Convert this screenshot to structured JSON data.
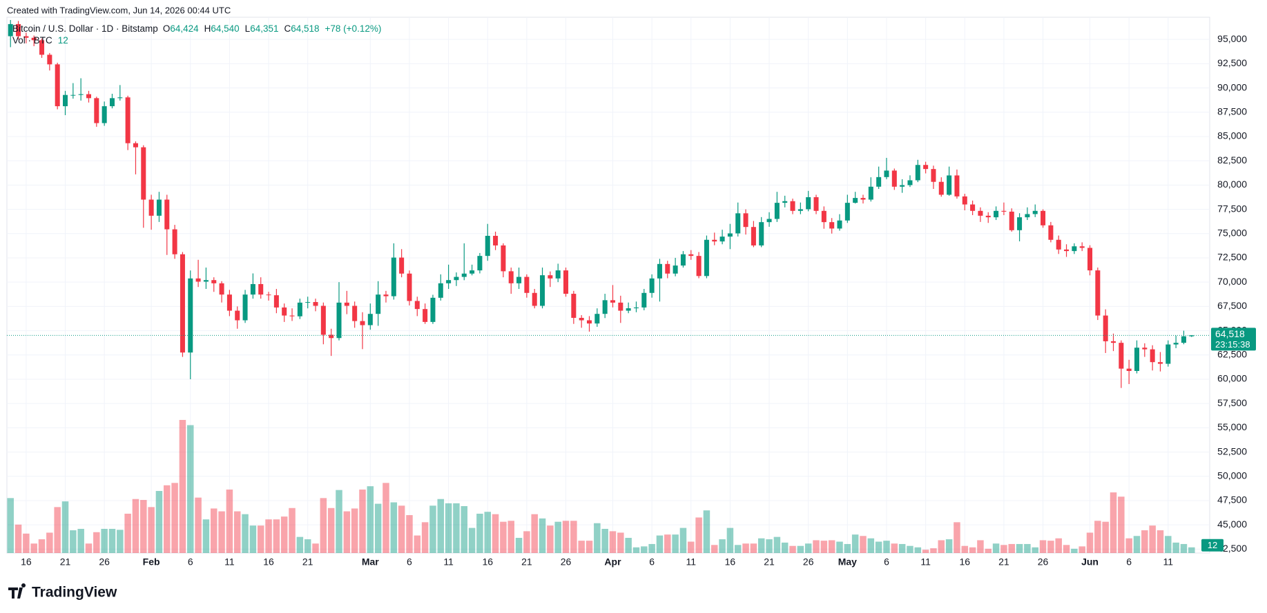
{
  "caption": "Created with TradingView.com, Jun 14, 2026 00:44 UTC",
  "logo": "TradingView",
  "chart_data": {
    "type": "candlestick",
    "legend": {
      "symbol": "Bitcoin / U.S. Dollar · 1D · Bitstamp",
      "fields": [
        [
          "O",
          "64,424"
        ],
        [
          "H",
          "64,540"
        ],
        [
          "L",
          "64,351"
        ],
        [
          "C",
          "64,518"
        ]
      ],
      "change": "+78 (+0.12%)",
      "volume_name": "Vol · BTC"
    },
    "up_color": "#089981",
    "down_color": "#f23645",
    "ylim": [
      42100,
      97000
    ],
    "yticks": [
      {
        "value": 95000,
        "label": "95,000"
      },
      {
        "value": 92500,
        "label": "92,500"
      },
      {
        "value": 90000,
        "label": "90,000"
      },
      {
        "value": 87500,
        "label": "87,500"
      },
      {
        "value": 85000,
        "label": "85,000"
      },
      {
        "value": 82500,
        "label": "82,500"
      },
      {
        "value": 80000,
        "label": "80,000"
      },
      {
        "value": 77500,
        "label": "77,500"
      },
      {
        "value": 75000,
        "label": "75,000"
      },
      {
        "value": 72500,
        "label": "72,500"
      },
      {
        "value": 70000,
        "label": "70,000"
      },
      {
        "value": 67500,
        "label": "67,500"
      },
      {
        "value": 65000,
        "label": "65,000"
      },
      {
        "value": 62500,
        "label": "62,500"
      },
      {
        "value": 60000,
        "label": "60,000"
      },
      {
        "value": 57500,
        "label": "57,500"
      },
      {
        "value": 55000,
        "label": "55,000"
      },
      {
        "value": 52500,
        "label": "52,500"
      },
      {
        "value": 50000,
        "label": "50,000"
      },
      {
        "value": 47500,
        "label": "47,500"
      },
      {
        "value": 45000,
        "label": "45,000"
      },
      {
        "value": 42500,
        "label": "42,500"
      }
    ],
    "xticks": [
      {
        "value": 2,
        "label": "16"
      },
      {
        "value": 7,
        "label": "21"
      },
      {
        "value": 12,
        "label": "26"
      },
      {
        "value": 18,
        "label": "Feb"
      },
      {
        "value": 23,
        "label": "6"
      },
      {
        "value": 28,
        "label": "11"
      },
      {
        "value": 33,
        "label": "16"
      },
      {
        "value": 38,
        "label": "21"
      },
      {
        "value": 46,
        "label": "Mar"
      },
      {
        "value": 51,
        "label": "6"
      },
      {
        "value": 56,
        "label": "11"
      },
      {
        "value": 61,
        "label": "16"
      },
      {
        "value": 66,
        "label": "21"
      },
      {
        "value": 71,
        "label": "26"
      },
      {
        "value": 77,
        "label": "Apr"
      },
      {
        "value": 82,
        "label": "6"
      },
      {
        "value": 87,
        "label": "11"
      },
      {
        "value": 92,
        "label": "16"
      },
      {
        "value": 97,
        "label": "21"
      },
      {
        "value": 102,
        "label": "26"
      },
      {
        "value": 107,
        "label": "May"
      },
      {
        "value": 112,
        "label": "6"
      },
      {
        "value": 117,
        "label": "11"
      },
      {
        "value": 122,
        "label": "16"
      },
      {
        "value": 127,
        "label": "21"
      },
      {
        "value": 132,
        "label": "26"
      },
      {
        "value": 138,
        "label": "Jun"
      },
      {
        "value": 143,
        "label": "6"
      },
      {
        "value": 148,
        "label": "11"
      }
    ],
    "grid": true,
    "price_tag": {
      "value": 64518,
      "label": "64,518"
    },
    "countdown": "23:15:38",
    "open": [
      95330,
      96580,
      95330,
      95170,
      94920,
      93420,
      92430,
      88120,
      89280,
      89280,
      89360,
      88950,
      86380,
      88120,
      88950,
      89030,
      84310,
      83890,
      78500,
      76840,
      78500,
      75440,
      72870,
      62750,
      70380,
      70050,
      70210,
      69880,
      68720,
      67060,
      66070,
      68720,
      69800,
      68720,
      68650,
      67390,
      66560,
      66480,
      67890,
      67950,
      67560,
      64580,
      64240,
      67890,
      67560,
      65990,
      65570,
      66730,
      68720,
      68550,
      72530,
      70880,
      68060,
      67230,
      65900,
      68390,
      69880,
      70210,
      70540,
      70880,
      71210,
      72700,
      74770,
      73780,
      71120,
      69880,
      70540,
      68890,
      67560,
      70710,
      70380,
      71210,
      68800,
      66320,
      66070,
      65740,
      66730,
      68140,
      67890,
      67060,
      67310,
      67390,
      68890,
      70380,
      71870,
      70880,
      71710,
      72870,
      72700,
      70630,
      74360,
      74190,
      74690,
      75020,
      77090,
      75680,
      73780,
      76180,
      76510,
      78170,
      78340,
      77340,
      77510,
      78750,
      77340,
      76180,
      75520,
      76350,
      78170,
      78670,
      78500,
      79830,
      80820,
      81490,
      79830,
      79990,
      80490,
      82070,
      81650,
      80330,
      79000,
      80990,
      78830,
      78000,
      77340,
      76840,
      76680,
      77340,
      77260,
      75350,
      76680,
      77010,
      77340,
      75850,
      74360,
      73360,
      73200,
      73690,
      73530,
      71210,
      66560,
      63910,
      63750,
      61090,
      60850,
      63250,
      63080,
      61760,
      61590,
      63580,
      63750,
      64424
    ],
    "high": [
      97000,
      96900,
      95700,
      95400,
      95100,
      93600,
      92600,
      89700,
      90500,
      91000,
      89700,
      89100,
      88600,
      89400,
      90300,
      89200,
      84500,
      84100,
      79000,
      79300,
      79000,
      75900,
      73100,
      71200,
      72300,
      71500,
      70500,
      70100,
      69200,
      67500,
      69200,
      70900,
      70500,
      69000,
      69300,
      67800,
      67300,
      68300,
      68500,
      68300,
      67900,
      65200,
      70000,
      69100,
      68000,
      66900,
      67800,
      70100,
      69100,
      74000,
      73400,
      71200,
      68500,
      67800,
      68700,
      70800,
      71800,
      71000,
      74000,
      71800,
      73000,
      76000,
      75200,
      74000,
      71500,
      71500,
      70800,
      69300,
      71500,
      71100,
      71900,
      71500,
      69100,
      66600,
      66500,
      67300,
      68800,
      69700,
      68600,
      67900,
      68000,
      69300,
      70800,
      72400,
      72200,
      72500,
      73200,
      73300,
      73100,
      74800,
      75100,
      75400,
      76000,
      78200,
      77500,
      76300,
      76700,
      77200,
      79300,
      78900,
      78600,
      78200,
      79400,
      79000,
      77800,
      76600,
      77000,
      79000,
      79300,
      79000,
      80800,
      81900,
      82800,
      81700,
      80600,
      81000,
      82600,
      82400,
      82000,
      80800,
      81900,
      81600,
      79100,
      78400,
      77700,
      77200,
      77800,
      78200,
      77600,
      77100,
      77700,
      78000,
      77500,
      76200,
      74800,
      73900,
      74000,
      74100,
      73800,
      71500,
      67200,
      64700,
      64000,
      62000,
      64000,
      63700,
      63500,
      62800,
      64000,
      64500,
      65000,
      64540
    ],
    "low": [
      94200,
      95000,
      94600,
      94300,
      93100,
      91800,
      87800,
      87200,
      88900,
      88700,
      88500,
      86000,
      86100,
      87900,
      88700,
      83600,
      81100,
      75600,
      75400,
      76200,
      72800,
      72400,
      62300,
      60000,
      69500,
      69300,
      69000,
      67900,
      66500,
      65200,
      65800,
      68300,
      68300,
      68100,
      66800,
      65900,
      66000,
      66200,
      67300,
      67000,
      63600,
      62400,
      64000,
      66700,
      65300,
      63100,
      65100,
      65500,
      67900,
      68200,
      70500,
      67600,
      66500,
      65700,
      65700,
      68100,
      69300,
      69600,
      70200,
      70700,
      70900,
      72200,
      73300,
      70500,
      68800,
      69300,
      68400,
      67300,
      67300,
      69500,
      70000,
      68500,
      65700,
      65300,
      64900,
      65400,
      66300,
      67400,
      65800,
      66800,
      66900,
      67100,
      68400,
      68000,
      70400,
      70600,
      71500,
      72300,
      70400,
      70400,
      73800,
      73900,
      73400,
      74700,
      74900,
      73600,
      73600,
      75700,
      76200,
      77700,
      77000,
      77000,
      77300,
      77000,
      75500,
      75000,
      75300,
      76100,
      78100,
      78100,
      78300,
      79600,
      80600,
      79500,
      79200,
      79800,
      80300,
      81200,
      79600,
      78800,
      78900,
      78600,
      77400,
      76900,
      76200,
      76100,
      76400,
      76900,
      75200,
      74200,
      76400,
      76700,
      75600,
      74100,
      72900,
      72600,
      72900,
      73200,
      70700,
      66100,
      62700,
      62900,
      59100,
      59500,
      60600,
      62300,
      60900,
      60800,
      61300,
      63200,
      63600,
      64351
    ],
    "close": [
      96580,
      95330,
      95170,
      94920,
      93420,
      92430,
      88120,
      89280,
      89280,
      89360,
      88950,
      86380,
      88120,
      88950,
      89030,
      84310,
      83890,
      78500,
      76840,
      78500,
      75440,
      72870,
      62750,
      70380,
      70050,
      70210,
      69880,
      68720,
      67060,
      66070,
      68720,
      69800,
      68720,
      68650,
      67390,
      66560,
      66480,
      67890,
      67950,
      67560,
      64580,
      64240,
      67890,
      67560,
      65990,
      65570,
      66730,
      68720,
      68550,
      72530,
      70880,
      68060,
      67230,
      65900,
      68390,
      69880,
      70210,
      70540,
      70880,
      71210,
      72700,
      74770,
      73780,
      71120,
      69880,
      70540,
      68890,
      67560,
      70710,
      70380,
      71210,
      68800,
      66320,
      66070,
      65740,
      66730,
      68140,
      67890,
      67060,
      67310,
      67390,
      68890,
      70380,
      71870,
      70880,
      71710,
      72870,
      72700,
      70630,
      74360,
      74190,
      74690,
      75020,
      77090,
      75680,
      73780,
      76180,
      76510,
      78170,
      78340,
      77340,
      77510,
      78750,
      77340,
      76180,
      75520,
      76350,
      78170,
      78670,
      78500,
      79830,
      80820,
      81490,
      79830,
      79990,
      80490,
      82070,
      81650,
      80330,
      79000,
      80990,
      78830,
      78000,
      77340,
      76840,
      76680,
      77340,
      77260,
      75350,
      76680,
      77010,
      77340,
      75850,
      74360,
      73360,
      73200,
      73690,
      73530,
      71210,
      66560,
      63910,
      63750,
      61090,
      60850,
      63250,
      63080,
      61760,
      61590,
      63580,
      63750,
      64424,
      64518
    ],
    "volume": [
      116,
      60,
      41,
      20,
      29,
      43,
      97,
      109,
      48,
      51,
      20,
      44,
      51,
      51,
      49,
      83,
      114,
      112,
      97,
      131,
      143,
      148,
      281,
      270,
      117,
      71,
      94,
      88,
      134,
      88,
      82,
      58,
      58,
      71,
      71,
      77,
      95,
      34,
      29,
      20,
      116,
      95,
      133,
      88,
      94,
      134,
      141,
      104,
      148,
      107,
      100,
      80,
      37,
      65,
      100,
      114,
      105,
      105,
      99,
      53,
      83,
      87,
      82,
      66,
      68,
      32,
      46,
      82,
      73,
      58,
      66,
      68,
      68,
      26,
      26,
      63,
      51,
      46,
      43,
      32,
      12,
      14,
      19,
      37,
      39,
      39,
      53,
      24,
      75,
      90,
      17,
      29,
      53,
      17,
      20,
      20,
      31,
      29,
      34,
      22,
      15,
      15,
      20,
      27,
      26,
      27,
      24,
      19,
      39,
      36,
      31,
      24,
      26,
      20,
      19,
      15,
      12,
      7,
      10,
      27,
      29,
      65,
      15,
      12,
      27,
      9,
      20,
      17,
      19,
      19,
      19,
      12,
      27,
      26,
      31,
      17,
      9,
      14,
      43,
      68,
      66,
      128,
      119,
      31,
      36,
      48,
      58,
      48,
      36,
      22,
      19,
      12
    ]
  }
}
